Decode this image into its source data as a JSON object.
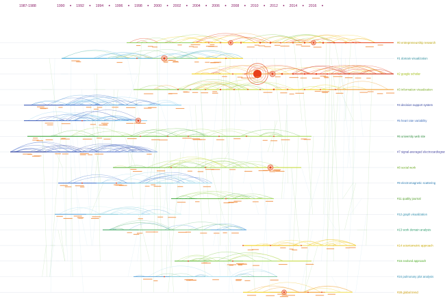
{
  "header": {
    "span_label": "1987-1988",
    "years": [
      "1990",
      "1992",
      "1994",
      "1996",
      "1998",
      "2000",
      "2002",
      "2004",
      "2006",
      "2008",
      "2010",
      "2012",
      "2014",
      "2016"
    ],
    "year_color": "#8a1a66"
  },
  "meta_lines": [
    "",
    "",
    "",
    "",
    "",
    "",
    "",
    "",
    "",
    "",
    "",
    ""
  ],
  "clusters": [
    {
      "label": "#0 entrepreneurship research",
      "color": "#b8a000"
    },
    {
      "label": "#1 domain visualization",
      "color": "#2a8a9a"
    },
    {
      "label": "#2 google scholar",
      "color": "#9ab800"
    },
    {
      "label": "#3 information visualization",
      "color": "#7aaa22"
    },
    {
      "label": "#4 decision support system",
      "color": "#2a3c9a"
    },
    {
      "label": "#5 heart rate variability",
      "color": "#3a6ab8"
    },
    {
      "label": "#6 university web site",
      "color": "#2a8a3a"
    },
    {
      "label": "#7 signal-averaged electrocardiogram",
      "color": "#3a3a9a"
    },
    {
      "label": "#8 social work",
      "color": "#6aaa22"
    },
    {
      "label": "#9 electromagnetic scattering",
      "color": "#2a7ab0"
    },
    {
      "label": "#11 quality journal",
      "color": "#4a9a22"
    },
    {
      "label": "#12 graph visualization",
      "color": "#2a8aaa"
    },
    {
      "label": "#13 work domain analysis",
      "color": "#2a9a6a"
    },
    {
      "label": "#14 scientometric approach",
      "color": "#c8a800"
    },
    {
      "label": "#16 evolved approach",
      "color": "#4aaa22"
    },
    {
      "label": "#24 pulmonary plot analysis",
      "color": "#2a8ab0"
    },
    {
      "label": "#28 global trend",
      "color": "#c89800"
    }
  ],
  "colors": {
    "early": "#3a5ab8",
    "mid": "#22aa44",
    "late": "#f0d020",
    "recent": "#e8401a",
    "tick_label": "#e07820"
  }
}
